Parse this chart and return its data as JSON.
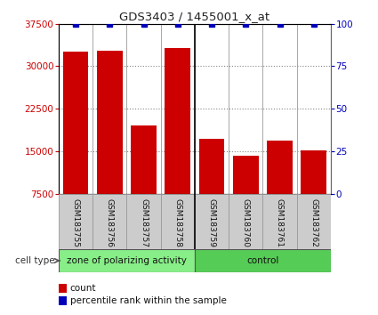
{
  "title": "GDS3403 / 1455001_x_at",
  "categories": [
    "GSM183755",
    "GSM183756",
    "GSM183757",
    "GSM183758",
    "GSM183759",
    "GSM183760",
    "GSM183761",
    "GSM183762"
  ],
  "counts": [
    32500,
    32700,
    19500,
    33200,
    17200,
    14200,
    16800,
    15200
  ],
  "percentile_ranks": [
    100,
    100,
    100,
    100,
    100,
    100,
    100,
    100
  ],
  "ylim_left": [
    7500,
    37500
  ],
  "yticks_left": [
    7500,
    15000,
    22500,
    30000,
    37500
  ],
  "yticks_right": [
    0,
    25,
    50,
    75,
    100
  ],
  "ylim_right": [
    0,
    100
  ],
  "bar_color": "#cc0000",
  "percentile_color": "#0000bb",
  "group1_label": "zone of polarizing activity",
  "group2_label": "control",
  "group1_color": "#88ee88",
  "group2_color": "#55cc55",
  "group1_indices": [
    0,
    1,
    2,
    3
  ],
  "group2_indices": [
    4,
    5,
    6,
    7
  ],
  "cell_type_label": "cell type",
  "legend_count_label": "count",
  "legend_percentile_label": "percentile rank within the sample",
  "bg_color": "#ffffff",
  "xlabel_bg": "#cccccc",
  "tick_label_color_left": "#cc0000",
  "tick_label_color_right": "#0000bb",
  "bar_width": 0.75
}
